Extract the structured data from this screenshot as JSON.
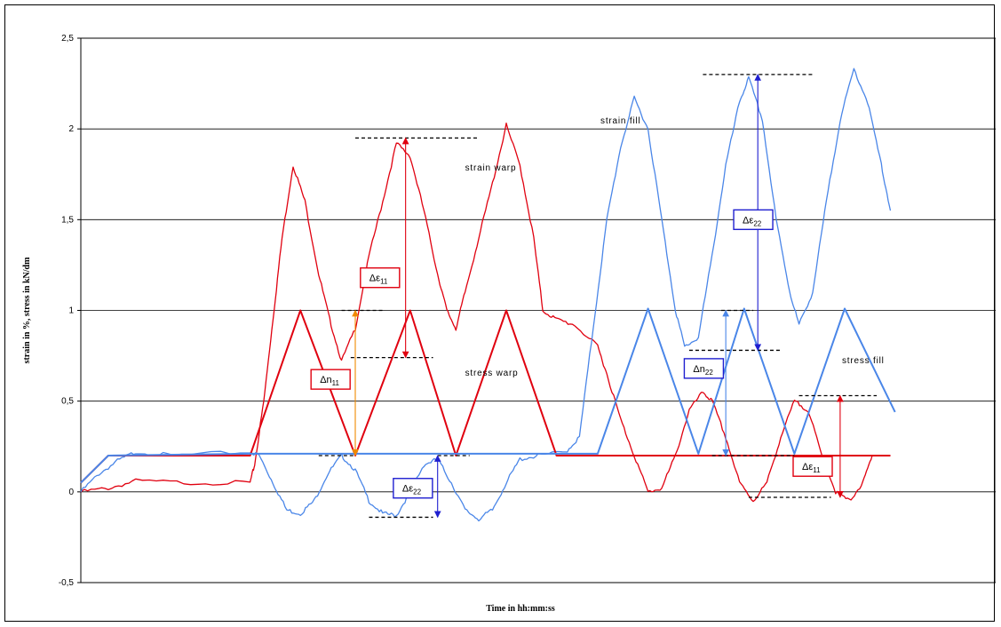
{
  "chart_data": {
    "type": "line",
    "title": "",
    "xlabel": "Time in hh:mm:ss",
    "ylabel": "strain in %, stress in kN/dm",
    "ylim": [
      -0.5,
      2.5
    ],
    "xlim": [
      0,
      1
    ],
    "yticks": [
      "2,5",
      "2",
      "1,5",
      "1",
      "0,5",
      "0",
      "-0,5"
    ],
    "grid": "horizontal",
    "legend": "none",
    "series": [
      {
        "name": "strain warp",
        "color": "#e0000f",
        "points": [
          [
            0.0,
            0.0
          ],
          [
            0.03,
            0.02
          ],
          [
            0.06,
            0.06
          ],
          [
            0.12,
            0.05
          ],
          [
            0.185,
            0.05
          ],
          [
            0.19,
            0.15
          ],
          [
            0.2,
            0.5
          ],
          [
            0.21,
            0.95
          ],
          [
            0.22,
            1.4
          ],
          [
            0.232,
            1.8
          ],
          [
            0.245,
            1.6
          ],
          [
            0.26,
            1.2
          ],
          [
            0.272,
            0.95
          ],
          [
            0.285,
            0.72
          ],
          [
            0.3,
            0.9
          ],
          [
            0.315,
            1.3
          ],
          [
            0.33,
            1.6
          ],
          [
            0.345,
            1.92
          ],
          [
            0.36,
            1.85
          ],
          [
            0.375,
            1.55
          ],
          [
            0.39,
            1.2
          ],
          [
            0.4,
            1.0
          ],
          [
            0.41,
            0.9
          ],
          [
            0.42,
            1.1
          ],
          [
            0.435,
            1.4
          ],
          [
            0.45,
            1.7
          ],
          [
            0.465,
            2.02
          ],
          [
            0.48,
            1.8
          ],
          [
            0.495,
            1.4
          ],
          [
            0.505,
            1.0
          ],
          [
            0.52,
            0.95
          ],
          [
            0.54,
            0.92
          ],
          [
            0.565,
            0.8
          ],
          [
            0.575,
            0.65
          ],
          [
            0.59,
            0.4
          ],
          [
            0.605,
            0.2
          ],
          [
            0.62,
            0.0
          ],
          [
            0.635,
            0.02
          ],
          [
            0.65,
            0.2
          ],
          [
            0.665,
            0.45
          ],
          [
            0.68,
            0.55
          ],
          [
            0.69,
            0.5
          ],
          [
            0.705,
            0.3
          ],
          [
            0.72,
            0.05
          ],
          [
            0.735,
            -0.05
          ],
          [
            0.75,
            0.05
          ],
          [
            0.765,
            0.3
          ],
          [
            0.78,
            0.5
          ],
          [
            0.795,
            0.45
          ],
          [
            0.81,
            0.2
          ],
          [
            0.825,
            0.0
          ],
          [
            0.84,
            -0.05
          ],
          [
            0.855,
            0.05
          ],
          [
            0.865,
            0.2
          ]
        ]
      },
      {
        "name": "strain fill",
        "color": "#4a86e8",
        "points": [
          [
            0.0,
            0.0
          ],
          [
            0.02,
            0.1
          ],
          [
            0.04,
            0.17
          ],
          [
            0.06,
            0.22
          ],
          [
            0.1,
            0.2
          ],
          [
            0.185,
            0.22
          ],
          [
            0.195,
            0.2
          ],
          [
            0.21,
            0.05
          ],
          [
            0.225,
            -0.1
          ],
          [
            0.24,
            -0.12
          ],
          [
            0.255,
            -0.05
          ],
          [
            0.27,
            0.1
          ],
          [
            0.285,
            0.2
          ],
          [
            0.3,
            0.12
          ],
          [
            0.315,
            -0.05
          ],
          [
            0.33,
            -0.12
          ],
          [
            0.345,
            -0.13
          ],
          [
            0.36,
            0.0
          ],
          [
            0.375,
            0.15
          ],
          [
            0.39,
            0.18
          ],
          [
            0.405,
            0.05
          ],
          [
            0.42,
            -0.1
          ],
          [
            0.435,
            -0.15
          ],
          [
            0.45,
            -0.1
          ],
          [
            0.465,
            0.05
          ],
          [
            0.48,
            0.18
          ],
          [
            0.5,
            0.2
          ],
          [
            0.53,
            0.22
          ],
          [
            0.545,
            0.3
          ],
          [
            0.56,
            0.9
          ],
          [
            0.575,
            1.5
          ],
          [
            0.59,
            1.9
          ],
          [
            0.605,
            2.17
          ],
          [
            0.62,
            2.0
          ],
          [
            0.635,
            1.5
          ],
          [
            0.65,
            1.0
          ],
          [
            0.66,
            0.8
          ],
          [
            0.675,
            0.85
          ],
          [
            0.69,
            1.3
          ],
          [
            0.705,
            1.8
          ],
          [
            0.72,
            2.15
          ],
          [
            0.73,
            2.28
          ],
          [
            0.745,
            2.05
          ],
          [
            0.76,
            1.5
          ],
          [
            0.775,
            1.1
          ],
          [
            0.785,
            0.92
          ],
          [
            0.8,
            1.1
          ],
          [
            0.815,
            1.6
          ],
          [
            0.83,
            2.05
          ],
          [
            0.845,
            2.33
          ],
          [
            0.86,
            2.15
          ],
          [
            0.875,
            1.8
          ],
          [
            0.885,
            1.55
          ]
        ]
      },
      {
        "name": "stress warp",
        "color": "#e0000f",
        "points": [
          [
            0.0,
            0.05
          ],
          [
            0.03,
            0.2
          ],
          [
            0.185,
            0.2
          ],
          [
            0.24,
            1.0
          ],
          [
            0.3,
            0.2
          ],
          [
            0.36,
            1.0
          ],
          [
            0.41,
            0.2
          ],
          [
            0.465,
            1.0
          ],
          [
            0.52,
            0.2
          ],
          [
            0.885,
            0.2
          ]
        ]
      },
      {
        "name": "stress fill",
        "color": "#4a86e8",
        "points": [
          [
            0.0,
            0.05
          ],
          [
            0.03,
            0.2
          ],
          [
            0.185,
            0.21
          ],
          [
            0.53,
            0.21
          ],
          [
            0.565,
            0.21
          ],
          [
            0.62,
            1.01
          ],
          [
            0.675,
            0.21
          ],
          [
            0.725,
            1.01
          ],
          [
            0.78,
            0.21
          ],
          [
            0.835,
            1.01
          ],
          [
            0.89,
            0.44
          ]
        ]
      }
    ],
    "annotations": {
      "strain_warp": "strain warp",
      "strain_fill": "strain fill",
      "stress_warp": "stress warp",
      "stress_fill": "stress fill",
      "delta_eps11_a": "Δε11",
      "delta_n11": "Δn11",
      "delta_eps22_a": "Δε22",
      "delta_eps22_b": "Δε22",
      "delta_n22": "Δn22",
      "delta_eps11_b": "Δε11"
    }
  }
}
